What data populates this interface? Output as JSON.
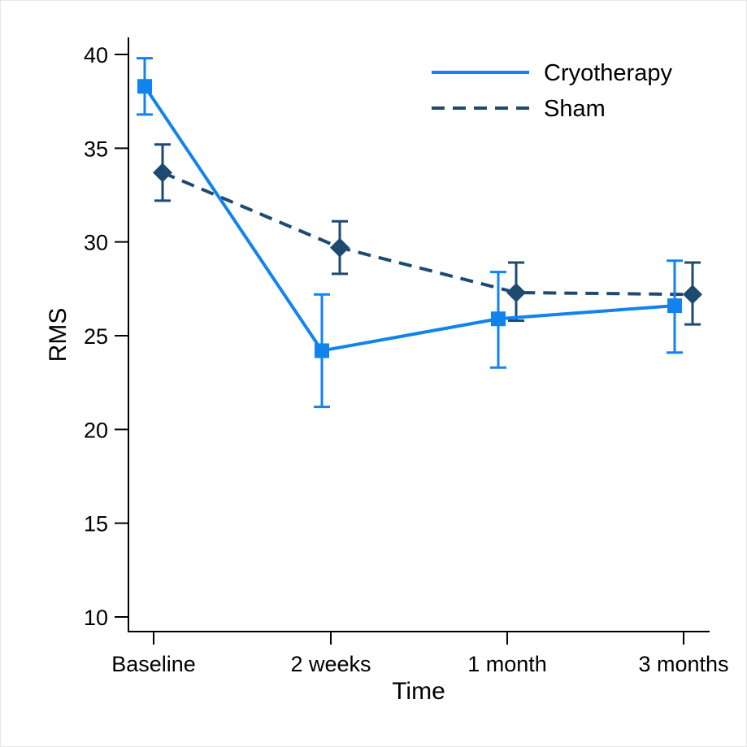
{
  "chart_data": {
    "type": "line",
    "xlabel": "Time",
    "ylabel": "RMS",
    "categories": [
      "Baseline",
      "2 weeks",
      "1 month",
      "3 months"
    ],
    "ylim": [
      10,
      40
    ],
    "yticks": [
      10,
      15,
      20,
      25,
      30,
      35,
      40
    ],
    "grid": false,
    "legend_position": "top-right",
    "series": [
      {
        "name": "Cryotherapy",
        "color": "#1283ec",
        "line_style": "solid",
        "marker": "square",
        "values": [
          38.3,
          24.2,
          25.9,
          26.6
        ],
        "ci_lower": [
          36.8,
          21.2,
          23.3,
          24.1
        ],
        "ci_upper": [
          39.8,
          27.2,
          28.4,
          29.0
        ]
      },
      {
        "name": "Sham",
        "color": "#1e4a72",
        "line_style": "dashed",
        "marker": "diamond",
        "values": [
          33.7,
          29.7,
          27.3,
          27.2
        ],
        "ci_lower": [
          32.2,
          28.3,
          25.8,
          25.6
        ],
        "ci_upper": [
          35.2,
          31.1,
          28.9,
          28.9
        ]
      }
    ]
  }
}
